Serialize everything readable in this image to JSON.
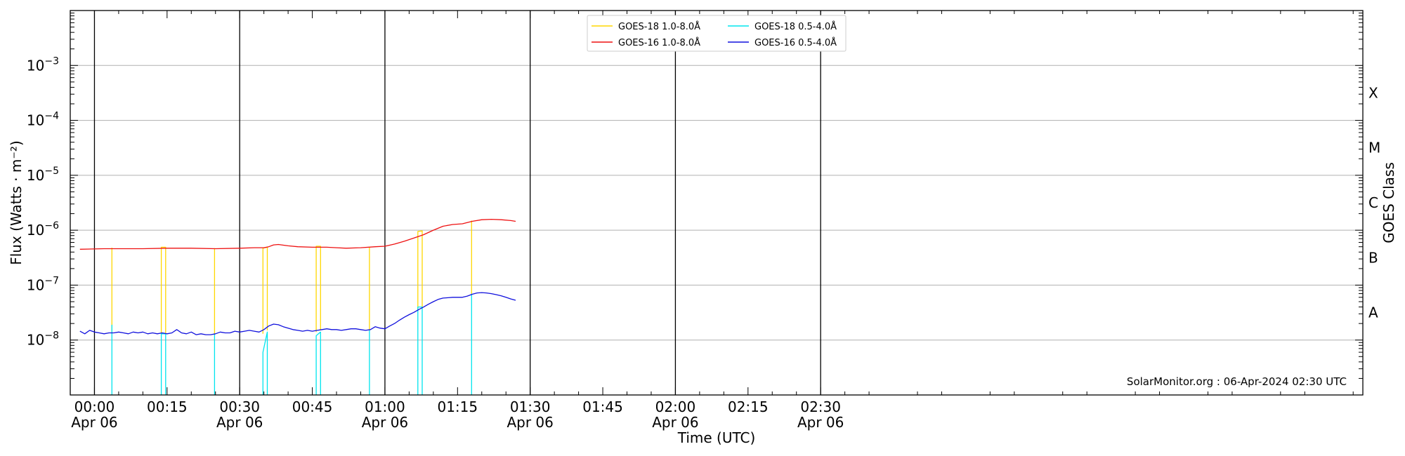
{
  "chart_data": {
    "type": "line",
    "title": "",
    "xlabel": "Time (UTC)",
    "ylabel": "Flux (Watts · m⁻²)",
    "y2label": "GOES Class",
    "yscale": "log",
    "ylim": [
      1e-09,
      0.01
    ],
    "xlim": [
      -5,
      262
    ],
    "x_unit": "minutes after 2024-04-06 00:00 UTC",
    "y_ticks": [
      {
        "value": 1e-08,
        "base": "10",
        "exp": "−8"
      },
      {
        "value": 1e-07,
        "base": "10",
        "exp": "−7"
      },
      {
        "value": 1e-06,
        "base": "10",
        "exp": "−6"
      },
      {
        "value": 1e-05,
        "base": "10",
        "exp": "−5"
      },
      {
        "value": 0.0001,
        "base": "10",
        "exp": "−4"
      },
      {
        "value": 0.001,
        "base": "10",
        "exp": "−3"
      }
    ],
    "x_ticks": [
      {
        "value": 0,
        "time": "00:00",
        "date": "Apr 06"
      },
      {
        "value": 15,
        "time": "00:15",
        "date": ""
      },
      {
        "value": 30,
        "time": "00:30",
        "date": "Apr 06"
      },
      {
        "value": 45,
        "time": "00:45",
        "date": ""
      },
      {
        "value": 60,
        "time": "01:00",
        "date": "Apr 06"
      },
      {
        "value": 75,
        "time": "01:15",
        "date": ""
      },
      {
        "value": 90,
        "time": "01:30",
        "date": "Apr 06"
      },
      {
        "value": 105,
        "time": "01:45",
        "date": ""
      },
      {
        "value": 120,
        "time": "02:00",
        "date": "Apr 06"
      },
      {
        "value": 135,
        "time": "02:15",
        "date": ""
      },
      {
        "value": 150,
        "time": "02:30",
        "date": "Apr 06"
      }
    ],
    "class_labels": [
      {
        "label": "A",
        "value": 3.16e-08
      },
      {
        "label": "B",
        "value": 3.16e-07
      },
      {
        "label": "C",
        "value": 3.16e-06
      },
      {
        "label": "M",
        "value": 3.16e-05
      },
      {
        "label": "X",
        "value": 0.000316
      }
    ],
    "grid": "horizontal at decades; vertical lines at half-hours",
    "legend_position": "top-center",
    "credit": "SolarMonitor.org : 06-Apr-2024 02:30 UTC",
    "series": [
      {
        "name": "GOES-18 1.0-8.0Å",
        "color": "#ffd700",
        "width": 1.3,
        "segments": [
          [
            [
              3.6,
              1.35e-08
            ],
            [
              3.6,
              4.8e-07
            ]
          ],
          [
            [
              13.8,
              1.3e-08
            ],
            [
              13.8,
              4.9e-07
            ],
            [
              14.7,
              4.9e-07
            ],
            [
              14.7,
              1.3e-08
            ]
          ],
          [
            [
              24.8,
              1.2e-08
            ],
            [
              24.8,
              4.7e-07
            ]
          ],
          [
            [
              34.8,
              1.3e-08
            ],
            [
              34.8,
              4.7e-07
            ],
            [
              35.7,
              4.9e-07
            ],
            [
              35.7,
              1.5e-08
            ]
          ],
          [
            [
              45.8,
              1.4e-08
            ],
            [
              45.8,
              5.1e-07
            ],
            [
              46.7,
              5.1e-07
            ],
            [
              46.7,
              1.5e-08
            ]
          ],
          [
            [
              56.8,
              1.5e-08
            ],
            [
              56.8,
              4.9e-07
            ]
          ],
          [
            [
              66.8,
              3.5e-08
            ],
            [
              66.8,
              9.5e-07
            ],
            [
              67.7,
              9.7e-07
            ],
            [
              67.7,
              3.8e-08
            ]
          ],
          [
            [
              77.9,
              6.8e-08
            ],
            [
              77.9,
              1.5e-06
            ]
          ]
        ]
      },
      {
        "name": "GOES-16 1.0-8.0Å",
        "color": "#ee1111",
        "width": 1.3,
        "segments": [
          [
            [
              -3,
              4.5e-07
            ],
            [
              2,
              4.6e-07
            ],
            [
              5,
              4.6e-07
            ],
            [
              10,
              4.6e-07
            ],
            [
              15,
              4.7e-07
            ],
            [
              20,
              4.7e-07
            ],
            [
              25,
              4.6e-07
            ],
            [
              30,
              4.7e-07
            ],
            [
              33,
              4.8e-07
            ],
            [
              35,
              4.8e-07
            ],
            [
              36,
              5e-07
            ],
            [
              37,
              5.4e-07
            ],
            [
              38,
              5.5e-07
            ],
            [
              40,
              5.2e-07
            ],
            [
              42,
              5e-07
            ],
            [
              45,
              4.9e-07
            ],
            [
              48,
              4.9e-07
            ],
            [
              50,
              4.8e-07
            ],
            [
              52,
              4.7e-07
            ],
            [
              55,
              4.8e-07
            ],
            [
              58,
              5e-07
            ],
            [
              60,
              5.1e-07
            ],
            [
              62,
              5.6e-07
            ],
            [
              64,
              6.3e-07
            ],
            [
              66,
              7.2e-07
            ],
            [
              68,
              8.3e-07
            ],
            [
              70,
              1e-06
            ],
            [
              72,
              1.18e-06
            ],
            [
              74,
              1.27e-06
            ],
            [
              76,
              1.31e-06
            ],
            [
              78,
              1.45e-06
            ],
            [
              80,
              1.55e-06
            ],
            [
              82,
              1.58e-06
            ],
            [
              84,
              1.55e-06
            ],
            [
              86,
              1.5e-06
            ],
            [
              87,
              1.45e-06
            ]
          ]
        ]
      },
      {
        "name": "GOES-18 0.5-4.0Å",
        "color": "#00e5ee",
        "width": 1.3,
        "segments": [
          [
            [
              3.6,
              1e-09
            ],
            [
              3.6,
              1.9e-08
            ]
          ],
          [
            [
              13.8,
              1e-09
            ],
            [
              13.8,
              1.3e-08
            ],
            [
              14.7,
              1.3e-08
            ],
            [
              14.7,
              1e-09
            ]
          ],
          [
            [
              24.8,
              1e-09
            ],
            [
              24.8,
              1.3e-08
            ]
          ],
          [
            [
              34.8,
              1e-09
            ],
            [
              34.8,
              6e-09
            ],
            [
              35.7,
              1.4e-08
            ],
            [
              35.7,
              1e-09
            ]
          ],
          [
            [
              45.8,
              1e-09
            ],
            [
              45.8,
              1.2e-08
            ],
            [
              46.7,
              1.4e-08
            ],
            [
              46.7,
              1e-09
            ]
          ],
          [
            [
              56.8,
              1e-09
            ],
            [
              56.8,
              1.5e-08
            ]
          ],
          [
            [
              66.8,
              1e-09
            ],
            [
              66.8,
              4e-08
            ],
            [
              67.7,
              4e-08
            ],
            [
              67.7,
              1e-09
            ]
          ],
          [
            [
              77.9,
              1e-09
            ],
            [
              77.9,
              7e-08
            ]
          ]
        ]
      },
      {
        "name": "GOES-16 0.5-4.0Å",
        "color": "#1010dd",
        "width": 1.3,
        "segments": [
          [
            [
              -3,
              1.45e-08
            ],
            [
              -2,
              1.3e-08
            ],
            [
              -1,
              1.5e-08
            ],
            [
              0,
              1.4e-08
            ],
            [
              1,
              1.35e-08
            ],
            [
              2,
              1.3e-08
            ],
            [
              3,
              1.35e-08
            ],
            [
              4,
              1.35e-08
            ],
            [
              5,
              1.4e-08
            ],
            [
              6,
              1.35e-08
            ],
            [
              7,
              1.3e-08
            ],
            [
              8,
              1.4e-08
            ],
            [
              9,
              1.35e-08
            ],
            [
              10,
              1.4e-08
            ],
            [
              11,
              1.3e-08
            ],
            [
              12,
              1.35e-08
            ],
            [
              13,
              1.3e-08
            ],
            [
              14,
              1.35e-08
            ],
            [
              15,
              1.3e-08
            ],
            [
              16,
              1.35e-08
            ],
            [
              17,
              1.55e-08
            ],
            [
              18,
              1.35e-08
            ],
            [
              19,
              1.3e-08
            ],
            [
              20,
              1.4e-08
            ],
            [
              21,
              1.25e-08
            ],
            [
              22,
              1.3e-08
            ],
            [
              23,
              1.25e-08
            ],
            [
              24,
              1.25e-08
            ],
            [
              25,
              1.3e-08
            ],
            [
              26,
              1.4e-08
            ],
            [
              27,
              1.35e-08
            ],
            [
              28,
              1.35e-08
            ],
            [
              29,
              1.45e-08
            ],
            [
              30,
              1.4e-08
            ],
            [
              31,
              1.45e-08
            ],
            [
              32,
              1.5e-08
            ],
            [
              33,
              1.45e-08
            ],
            [
              34,
              1.4e-08
            ],
            [
              35,
              1.55e-08
            ],
            [
              36,
              1.8e-08
            ],
            [
              37,
              1.95e-08
            ],
            [
              38,
              1.9e-08
            ],
            [
              39,
              1.75e-08
            ],
            [
              40,
              1.65e-08
            ],
            [
              41,
              1.55e-08
            ],
            [
              42,
              1.5e-08
            ],
            [
              43,
              1.45e-08
            ],
            [
              44,
              1.5e-08
            ],
            [
              45,
              1.45e-08
            ],
            [
              46,
              1.5e-08
            ],
            [
              47,
              1.55e-08
            ],
            [
              48,
              1.6e-08
            ],
            [
              49,
              1.55e-08
            ],
            [
              50,
              1.55e-08
            ],
            [
              51,
              1.5e-08
            ],
            [
              52,
              1.55e-08
            ],
            [
              53,
              1.6e-08
            ],
            [
              54,
              1.6e-08
            ],
            [
              55,
              1.55e-08
            ],
            [
              56,
              1.5e-08
            ],
            [
              57,
              1.55e-08
            ],
            [
              58,
              1.75e-08
            ],
            [
              59,
              1.65e-08
            ],
            [
              60,
              1.6e-08
            ],
            [
              61,
              1.8e-08
            ],
            [
              62,
              2e-08
            ],
            [
              63,
              2.3e-08
            ],
            [
              64,
              2.6e-08
            ],
            [
              65,
              2.9e-08
            ],
            [
              66,
              3.2e-08
            ],
            [
              67,
              3.6e-08
            ],
            [
              68,
              4e-08
            ],
            [
              69,
              4.5e-08
            ],
            [
              70,
              5e-08
            ],
            [
              71,
              5.5e-08
            ],
            [
              72,
              5.8e-08
            ],
            [
              73,
              5.9e-08
            ],
            [
              74,
              6e-08
            ],
            [
              75,
              6e-08
            ],
            [
              76,
              6e-08
            ],
            [
              77,
              6.3e-08
            ],
            [
              78,
              6.8e-08
            ],
            [
              79,
              7.2e-08
            ],
            [
              80,
              7.3e-08
            ],
            [
              81,
              7.2e-08
            ],
            [
              82,
              7e-08
            ],
            [
              83,
              6.7e-08
            ],
            [
              84,
              6.4e-08
            ],
            [
              85,
              6e-08
            ],
            [
              86,
              5.6e-08
            ],
            [
              87,
              5.3e-08
            ]
          ]
        ]
      }
    ]
  }
}
